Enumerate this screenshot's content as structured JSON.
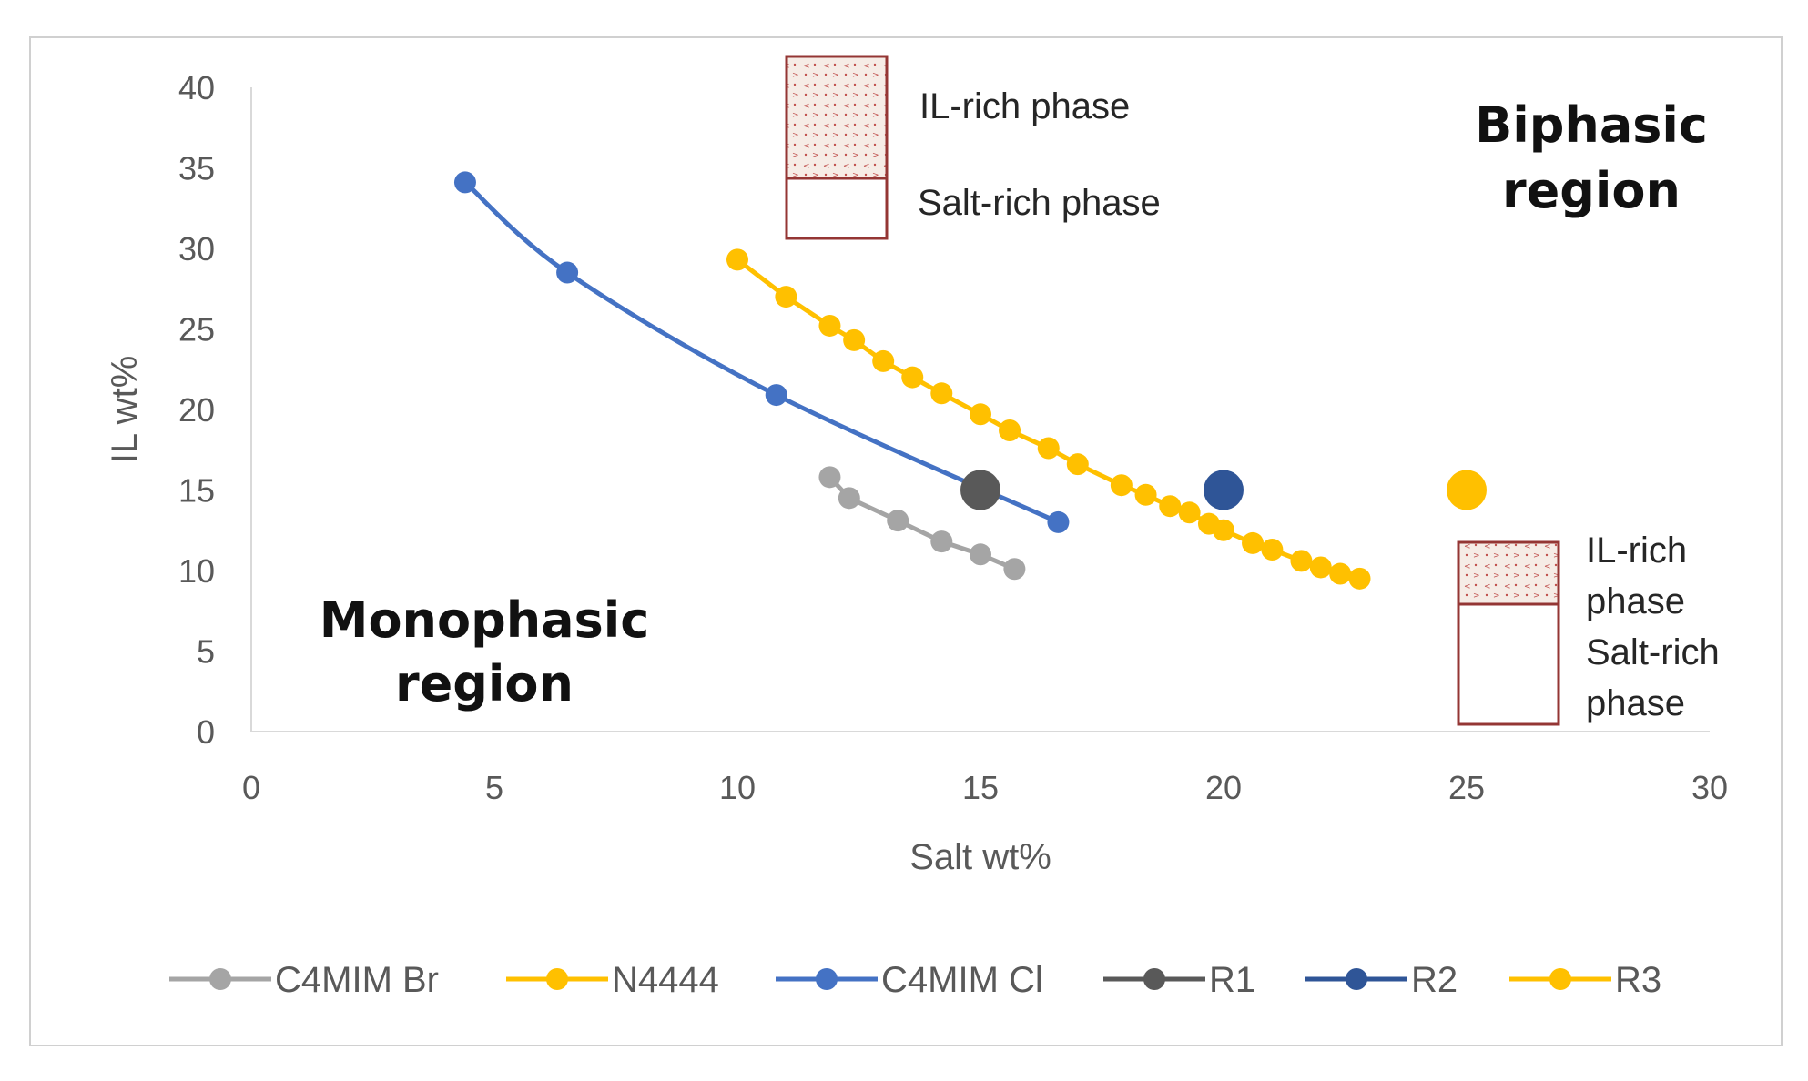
{
  "chart_data": {
    "type": "line",
    "title": "",
    "xlabel": "Salt wt%",
    "ylabel": "IL wt%",
    "xlim": [
      0,
      30
    ],
    "ylim": [
      0,
      40
    ],
    "xticks": [
      0,
      5,
      10,
      15,
      20,
      25,
      30
    ],
    "yticks": [
      0,
      5,
      10,
      15,
      20,
      25,
      30,
      35,
      40
    ],
    "grid": false,
    "legend_position": "bottom",
    "series": [
      {
        "name": "C4MIM Br",
        "color": "#a5a5a5",
        "kind": "line-markers",
        "x": [
          11.9,
          12.3,
          13.3,
          14.2,
          15.0,
          15.7
        ],
        "y": [
          15.8,
          14.5,
          13.1,
          11.8,
          11.0,
          10.1
        ]
      },
      {
        "name": "N4444",
        "color": "#ffc000",
        "kind": "line-markers",
        "x": [
          10.0,
          11.0,
          11.9,
          12.4,
          13.0,
          13.6,
          14.2,
          15.0,
          15.6,
          16.4,
          17.0,
          17.9,
          18.4,
          18.9,
          19.3,
          19.7,
          20.0,
          20.6,
          21.0,
          21.6,
          22.0,
          22.4,
          22.8
        ],
        "y": [
          29.3,
          27.0,
          25.2,
          24.3,
          23.0,
          22.0,
          21.0,
          19.7,
          18.7,
          17.6,
          16.6,
          15.3,
          14.7,
          14.0,
          13.6,
          12.9,
          12.5,
          11.7,
          11.3,
          10.6,
          10.2,
          9.8,
          9.5
        ]
      },
      {
        "name": "C4MIM Cl",
        "color": "#4472c4",
        "kind": "smooth-line-markers",
        "x": [
          4.4,
          6.5,
          10.8,
          16.6
        ],
        "y": [
          34.1,
          28.5,
          20.9,
          13.0
        ]
      },
      {
        "name": "R1",
        "color": "#595959",
        "kind": "marker",
        "x": [
          15.0
        ],
        "y": [
          15.0
        ]
      },
      {
        "name": "R2",
        "color": "#2f5597",
        "kind": "marker",
        "x": [
          20.0
        ],
        "y": [
          15.0
        ]
      },
      {
        "name": "R3",
        "color": "#ffc000",
        "kind": "marker",
        "x": [
          25.0
        ],
        "y": [
          15.0
        ]
      }
    ],
    "annotations": {
      "monophasic_line1": "Monophasic",
      "monophasic_line2": "region",
      "biphasic_line1": "Biphasic",
      "biphasic_line2": "region",
      "top_box_il": "IL-rich phase",
      "top_box_salt": "Salt-rich phase",
      "side_box_il_line1": "IL-rich",
      "side_box_il_line2": "phase",
      "side_box_salt_line1": "Salt-rich",
      "side_box_salt_line2": "phase"
    }
  }
}
